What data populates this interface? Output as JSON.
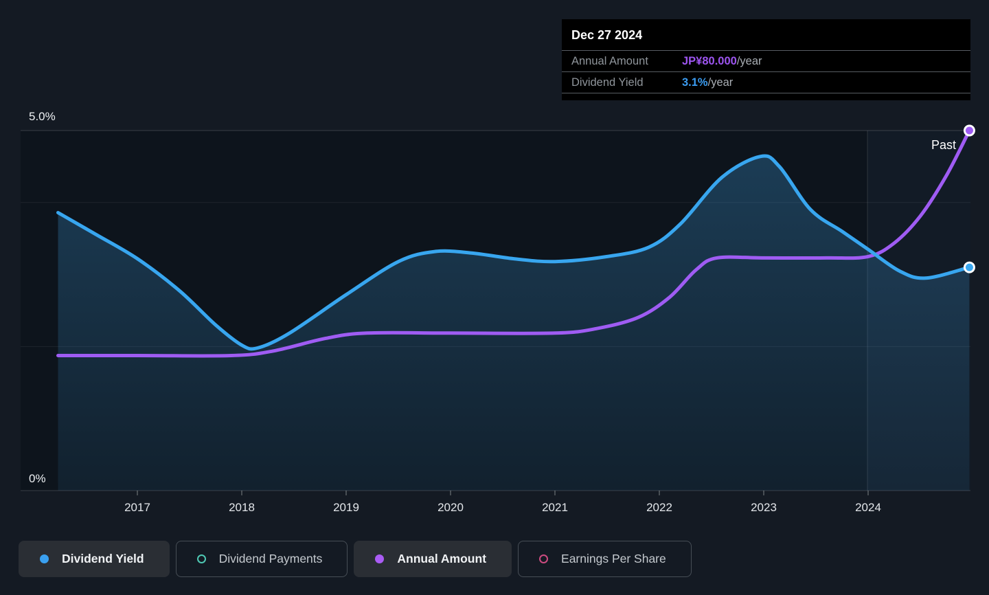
{
  "tooltip": {
    "date": "Dec 27 2024",
    "rows": [
      {
        "label": "Annual Amount",
        "value": "JP¥80.000",
        "suffix": "/year",
        "color": "#9d55f0"
      },
      {
        "label": "Dividend Yield",
        "value": "3.1%",
        "suffix": "/year",
        "color": "#3b9cf1"
      }
    ]
  },
  "past_label": "Past",
  "legend": [
    {
      "label": "Dividend Yield",
      "marker": "filled",
      "color": "#3aa0f0",
      "active": true
    },
    {
      "label": "Dividend Payments",
      "marker": "hollow",
      "color": "#4fc9b4",
      "active": false
    },
    {
      "label": "Annual Amount",
      "marker": "filled",
      "color": "#aa5cf4",
      "active": true
    },
    {
      "label": "Earnings Per Share",
      "marker": "hollow",
      "color": "#cd4b80",
      "active": false
    }
  ],
  "chart_data": {
    "type": "line",
    "title": "Dividend yield and annual dividend amount history",
    "x_axis": {
      "years": [
        2017,
        2018,
        2019,
        2020,
        2021,
        2022,
        2023,
        2024
      ],
      "divider_year": 2024
    },
    "y_axis": {
      "top_label": "5.0%",
      "bottom_label": "0%",
      "min_pct": 0,
      "max_pct": 5,
      "gridlines_pct": [
        5,
        4,
        2,
        0
      ]
    },
    "legend_position": "bottom",
    "series": [
      {
        "name": "Dividend Yield",
        "unit": "%",
        "color": "#38a6ef",
        "axis_max": 5,
        "end_dot": true,
        "points": [
          [
            2016.24,
            3.86
          ],
          [
            2016.6,
            3.56
          ],
          [
            2017.0,
            3.22
          ],
          [
            2017.4,
            2.78
          ],
          [
            2017.75,
            2.3
          ],
          [
            2018.0,
            2.02
          ],
          [
            2018.15,
            1.98
          ],
          [
            2018.45,
            2.18
          ],
          [
            2019.0,
            2.72
          ],
          [
            2019.5,
            3.18
          ],
          [
            2019.85,
            3.32
          ],
          [
            2020.2,
            3.3
          ],
          [
            2020.6,
            3.22
          ],
          [
            2021.0,
            3.18
          ],
          [
            2021.5,
            3.25
          ],
          [
            2021.9,
            3.38
          ],
          [
            2022.2,
            3.7
          ],
          [
            2022.6,
            4.35
          ],
          [
            2022.97,
            4.64
          ],
          [
            2023.15,
            4.5
          ],
          [
            2023.45,
            3.9
          ],
          [
            2023.75,
            3.6
          ],
          [
            2024.0,
            3.35
          ],
          [
            2024.3,
            3.05
          ],
          [
            2024.55,
            2.95
          ],
          [
            2024.97,
            3.1
          ]
        ]
      },
      {
        "name": "Annual Amount",
        "unit": "JP¥",
        "color": "#9f5cf3",
        "axis_max": 80,
        "end_dot": true,
        "points": [
          [
            2016.24,
            30
          ],
          [
            2017.0,
            30
          ],
          [
            2017.9,
            30
          ],
          [
            2018.3,
            31
          ],
          [
            2018.8,
            33.8
          ],
          [
            2019.2,
            35
          ],
          [
            2020.0,
            35
          ],
          [
            2021.0,
            35
          ],
          [
            2021.4,
            36
          ],
          [
            2021.8,
            38.5
          ],
          [
            2022.1,
            43
          ],
          [
            2022.35,
            49
          ],
          [
            2022.55,
            51.7
          ],
          [
            2023.0,
            51.7
          ],
          [
            2023.6,
            51.7
          ],
          [
            2024.0,
            52
          ],
          [
            2024.25,
            55
          ],
          [
            2024.5,
            61
          ],
          [
            2024.75,
            70
          ],
          [
            2024.97,
            80
          ]
        ]
      }
    ]
  }
}
